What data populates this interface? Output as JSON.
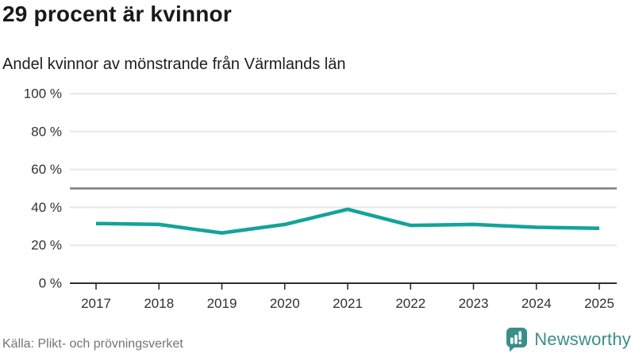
{
  "header": {
    "title": "29 procent är kvinnor",
    "subtitle": "Andel kvinnor av mönstrande från Värmlands län"
  },
  "chart_data": {
    "type": "line",
    "categories": [
      "2017",
      "2018",
      "2019",
      "2020",
      "2021",
      "2022",
      "2023",
      "2024",
      "2025"
    ],
    "series": [
      {
        "name": "Andel kvinnor av mönstrande",
        "values": [
          31.5,
          31,
          26.5,
          31,
          39,
          30.5,
          31,
          29.5,
          29
        ]
      }
    ],
    "title": "29 procent är kvinnor",
    "subtitle": "Andel kvinnor av mönstrande från Värmlands län",
    "xlabel": "",
    "ylabel": "",
    "ylim": [
      0,
      100
    ],
    "yticks": [
      0,
      20,
      40,
      60,
      80,
      100
    ],
    "ytick_suffix": " %",
    "reference_line": 50,
    "grid": true,
    "legend": false
  },
  "footer": {
    "source": "Källa: Plikt- och prövningsverket",
    "brand": "Newsworthy"
  },
  "colors": {
    "line": "#13a399",
    "brand_teal": "#3a8e89",
    "grid": "#e7e7e7",
    "reference": "#7d7d7d",
    "axis": "#2e2e2e",
    "tick_text": "#303030",
    "muted_text": "#747474"
  }
}
